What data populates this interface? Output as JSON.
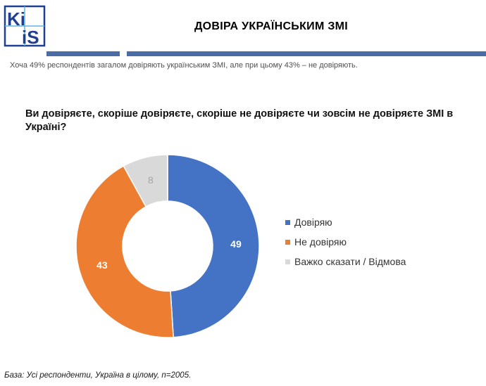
{
  "logo": {
    "text_top": "Ki",
    "text_bottom": "iS",
    "color": "#1f3f93",
    "accent": "#5db6e6"
  },
  "header": {
    "title": "ДОВІРА УКРАЇНСЬКИМ ЗМІ",
    "subtitle": "Хоча 49% респондентів загалом довіряють українським ЗМІ, але при цьому 43% – не довіряють."
  },
  "question": "Ви довіряєте, скоріше довіряєте, скоріше не довіряєте чи зовсім не довіряєте ЗМІ в Україні?",
  "chart_data": {
    "type": "pie",
    "variant": "donut",
    "categories": [
      "Довіряю",
      "Не довіряю",
      "Важко сказати / Відмова"
    ],
    "values": [
      49,
      43,
      8
    ],
    "colors": [
      "#4472c4",
      "#ed7d31",
      "#d9d9d9"
    ],
    "label_colors": [
      "#ffffff",
      "#ffffff",
      "#a6a6a6"
    ],
    "legend_position": "right"
  },
  "footer": {
    "base_note": "База: Усі респонденти, Україна в цілому, n=2005."
  }
}
